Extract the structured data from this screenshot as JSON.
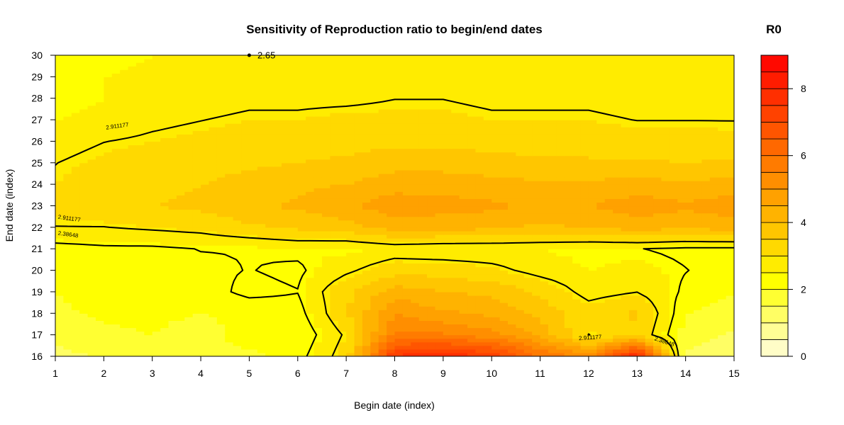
{
  "chart_data": {
    "type": "heatmap",
    "title": "Sensitivity of Reproduction ratio to begin/end dates",
    "xlabel": "Begin date (index)",
    "ylabel": "End date (index)",
    "x": [
      1,
      2,
      3,
      4,
      5,
      6,
      7,
      8,
      9,
      10,
      11,
      12,
      13,
      14,
      15
    ],
    "y": [
      16,
      17,
      18,
      19,
      20,
      21,
      22,
      23,
      24,
      25,
      26,
      27,
      28,
      29,
      30
    ],
    "xlim": [
      1,
      15
    ],
    "ylim": [
      16,
      30
    ],
    "z": [
      [
        1.3,
        1.6,
        2.0,
        2.0,
        1.9,
        2.2,
        3.2,
        7.6,
        8.0,
        7.4,
        6.0,
        5.2,
        8.2,
        1.4,
        1.0
      ],
      [
        1.6,
        1.9,
        2.0,
        1.8,
        2.2,
        2.0,
        3.0,
        5.6,
        5.6,
        5.2,
        4.4,
        2.9,
        3.4,
        1.8,
        1.4
      ],
      [
        1.9,
        2.1,
        2.1,
        2.0,
        2.1,
        2.2,
        3.4,
        5.0,
        4.6,
        4.4,
        3.8,
        3.2,
        3.6,
        2.0,
        1.8
      ],
      [
        2.0,
        2.2,
        2.2,
        2.2,
        2.5,
        2.4,
        3.4,
        4.3,
        4.0,
        3.9,
        3.4,
        2.7,
        2.9,
        2.3,
        2.0
      ],
      [
        2.1,
        2.2,
        2.3,
        2.3,
        2.4,
        2.3,
        2.8,
        3.3,
        3.3,
        3.1,
        2.7,
        2.5,
        2.6,
        2.4,
        2.2
      ],
      [
        2.2,
        2.3,
        2.3,
        2.4,
        2.4,
        2.5,
        2.4,
        2.6,
        2.5,
        2.5,
        2.5,
        2.4,
        2.4,
        2.3,
        2.3
      ],
      [
        2.9,
        2.9,
        3.0,
        3.1,
        3.4,
        3.6,
        3.8,
        4.2,
        4.2,
        4.1,
        3.9,
        4.0,
        4.2,
        4.1,
        4.2
      ],
      [
        3.1,
        3.3,
        3.5,
        3.6,
        3.9,
        4.1,
        4.4,
        4.8,
        4.7,
        4.6,
        4.4,
        4.5,
        4.8,
        4.6,
        4.8
      ],
      [
        3.0,
        3.2,
        3.4,
        3.5,
        3.7,
        3.9,
        4.0,
        4.3,
        4.3,
        4.2,
        4.1,
        4.1,
        4.2,
        4.1,
        4.2
      ],
      [
        2.9,
        3.1,
        3.2,
        3.3,
        3.4,
        3.5,
        3.6,
        3.8,
        3.8,
        3.7,
        3.6,
        3.6,
        3.6,
        3.5,
        3.6
      ],
      [
        2.7,
        2.9,
        3.0,
        3.1,
        3.2,
        3.3,
        3.3,
        3.4,
        3.4,
        3.3,
        3.3,
        3.2,
        3.2,
        3.2,
        3.1
      ],
      [
        2.5,
        2.6,
        2.8,
        2.9,
        3.0,
        3.0,
        3.1,
        3.1,
        3.1,
        3.0,
        3.0,
        3.0,
        2.9,
        2.9,
        2.9
      ],
      [
        2.4,
        2.5,
        2.6,
        2.7,
        2.8,
        2.8,
        2.8,
        2.9,
        2.9,
        2.8,
        2.8,
        2.8,
        2.7,
        2.7,
        2.7
      ],
      [
        2.4,
        2.5,
        2.6,
        2.6,
        2.7,
        2.7,
        2.7,
        2.7,
        2.7,
        2.7,
        2.6,
        2.6,
        2.6,
        2.6,
        2.6
      ],
      [
        2.4,
        2.4,
        2.5,
        2.5,
        2.6,
        2.6,
        2.6,
        2.6,
        2.6,
        2.6,
        2.5,
        2.5,
        2.5,
        2.5,
        2.5
      ]
    ],
    "levels": [
      0,
      0.5,
      1,
      1.5,
      2,
      2.5,
      3,
      3.5,
      4,
      4.5,
      5,
      5.5,
      6,
      6.5,
      7,
      7.5,
      8,
      8.5,
      9
    ],
    "colorbar": {
      "title": "R0",
      "range": [
        0,
        9
      ],
      "ticks": [
        0,
        2,
        4,
        6,
        8
      ]
    },
    "contours": [
      {
        "level": 2.911177,
        "label": "2.911177"
      },
      {
        "level": 2.38648,
        "label": "2.38648"
      },
      {
        "level": 2.65,
        "label": "2.65"
      }
    ],
    "colors": {
      "low": "#fffde0",
      "mid": "#ffff00",
      "high": "#ff0000",
      "contour": "#000000"
    }
  }
}
